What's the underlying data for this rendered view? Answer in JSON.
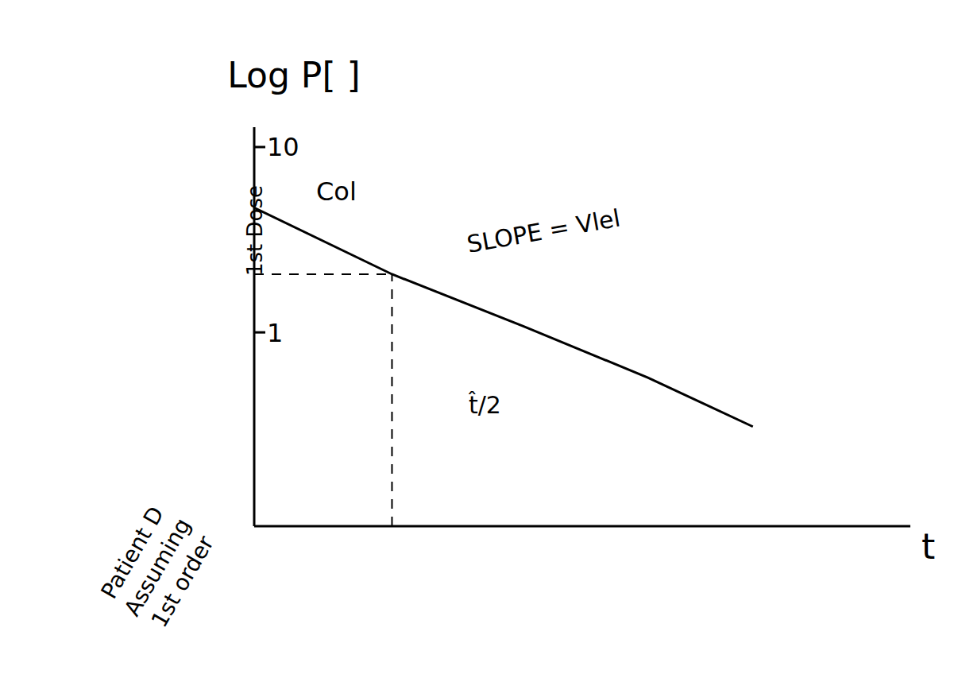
{
  "chart_data": {
    "type": "line",
    "y_label": "Log P[ ]",
    "x_label": "t",
    "x": [
      0,
      2.1,
      4.1,
      6.0,
      7.6
    ],
    "values": [
      4.7,
      2.06,
      1.08,
      0.57,
      0.31
    ],
    "color": "#000000",
    "xlim": [
      0,
      10
    ],
    "ylim": [
      0.09,
      12.8
    ],
    "yticks": [
      1,
      10
    ],
    "log": "y",
    "grid": false,
    "tick_labels": "y",
    "half_life": {
      "x": 2.1,
      "y": 2.06,
      "label": "t̂/2"
    },
    "annotations": [
      {
        "text": "Col"
      },
      {
        "text": "SLOPE = Vlel"
      },
      {
        "text": "1st Dose"
      },
      {
        "lines": [
          "Patient D",
          "Assuming",
          "1st order"
        ]
      }
    ]
  }
}
